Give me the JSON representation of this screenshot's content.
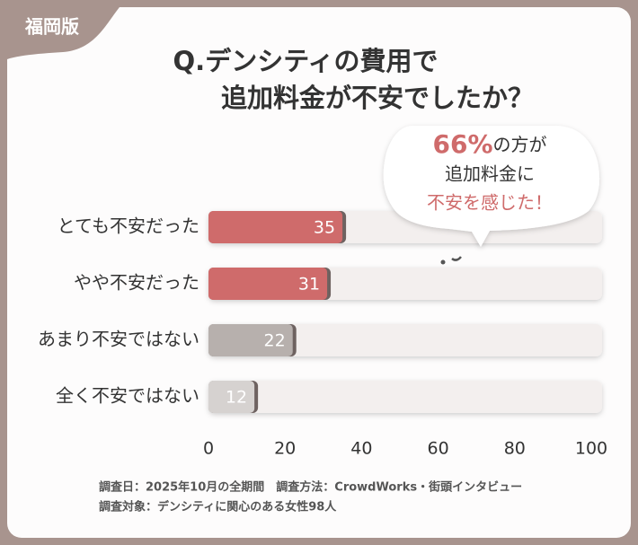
{
  "chart_data": {
    "type": "bar",
    "orientation": "horizontal",
    "tag": "福岡版",
    "title_lines": [
      "Q.デンシティの費用で",
      "追加料金が不安でしたか？"
    ],
    "categories": [
      "とても不安だった",
      "やや不安だった",
      "あまり不安ではない",
      "全く不安ではない"
    ],
    "values": [
      35,
      31,
      22,
      12
    ],
    "colors": [
      "#cf6b6b",
      "#cf6b6b",
      "#b7b0ad",
      "#d6d2d0"
    ],
    "xlim": [
      0,
      100
    ],
    "xticks": [
      0,
      20,
      40,
      60,
      80,
      100
    ],
    "callout": {
      "highlight": "66%",
      "line1_rest": "の方が",
      "line2": "追加料金に",
      "line3": "不安を感じた！"
    },
    "footnotes": [
      "調査日：2025年10月の全期間　調査方法：CrowdWorks・街頭インタビュー",
      "調査対象：デンシティに関心のある女性98人"
    ]
  }
}
